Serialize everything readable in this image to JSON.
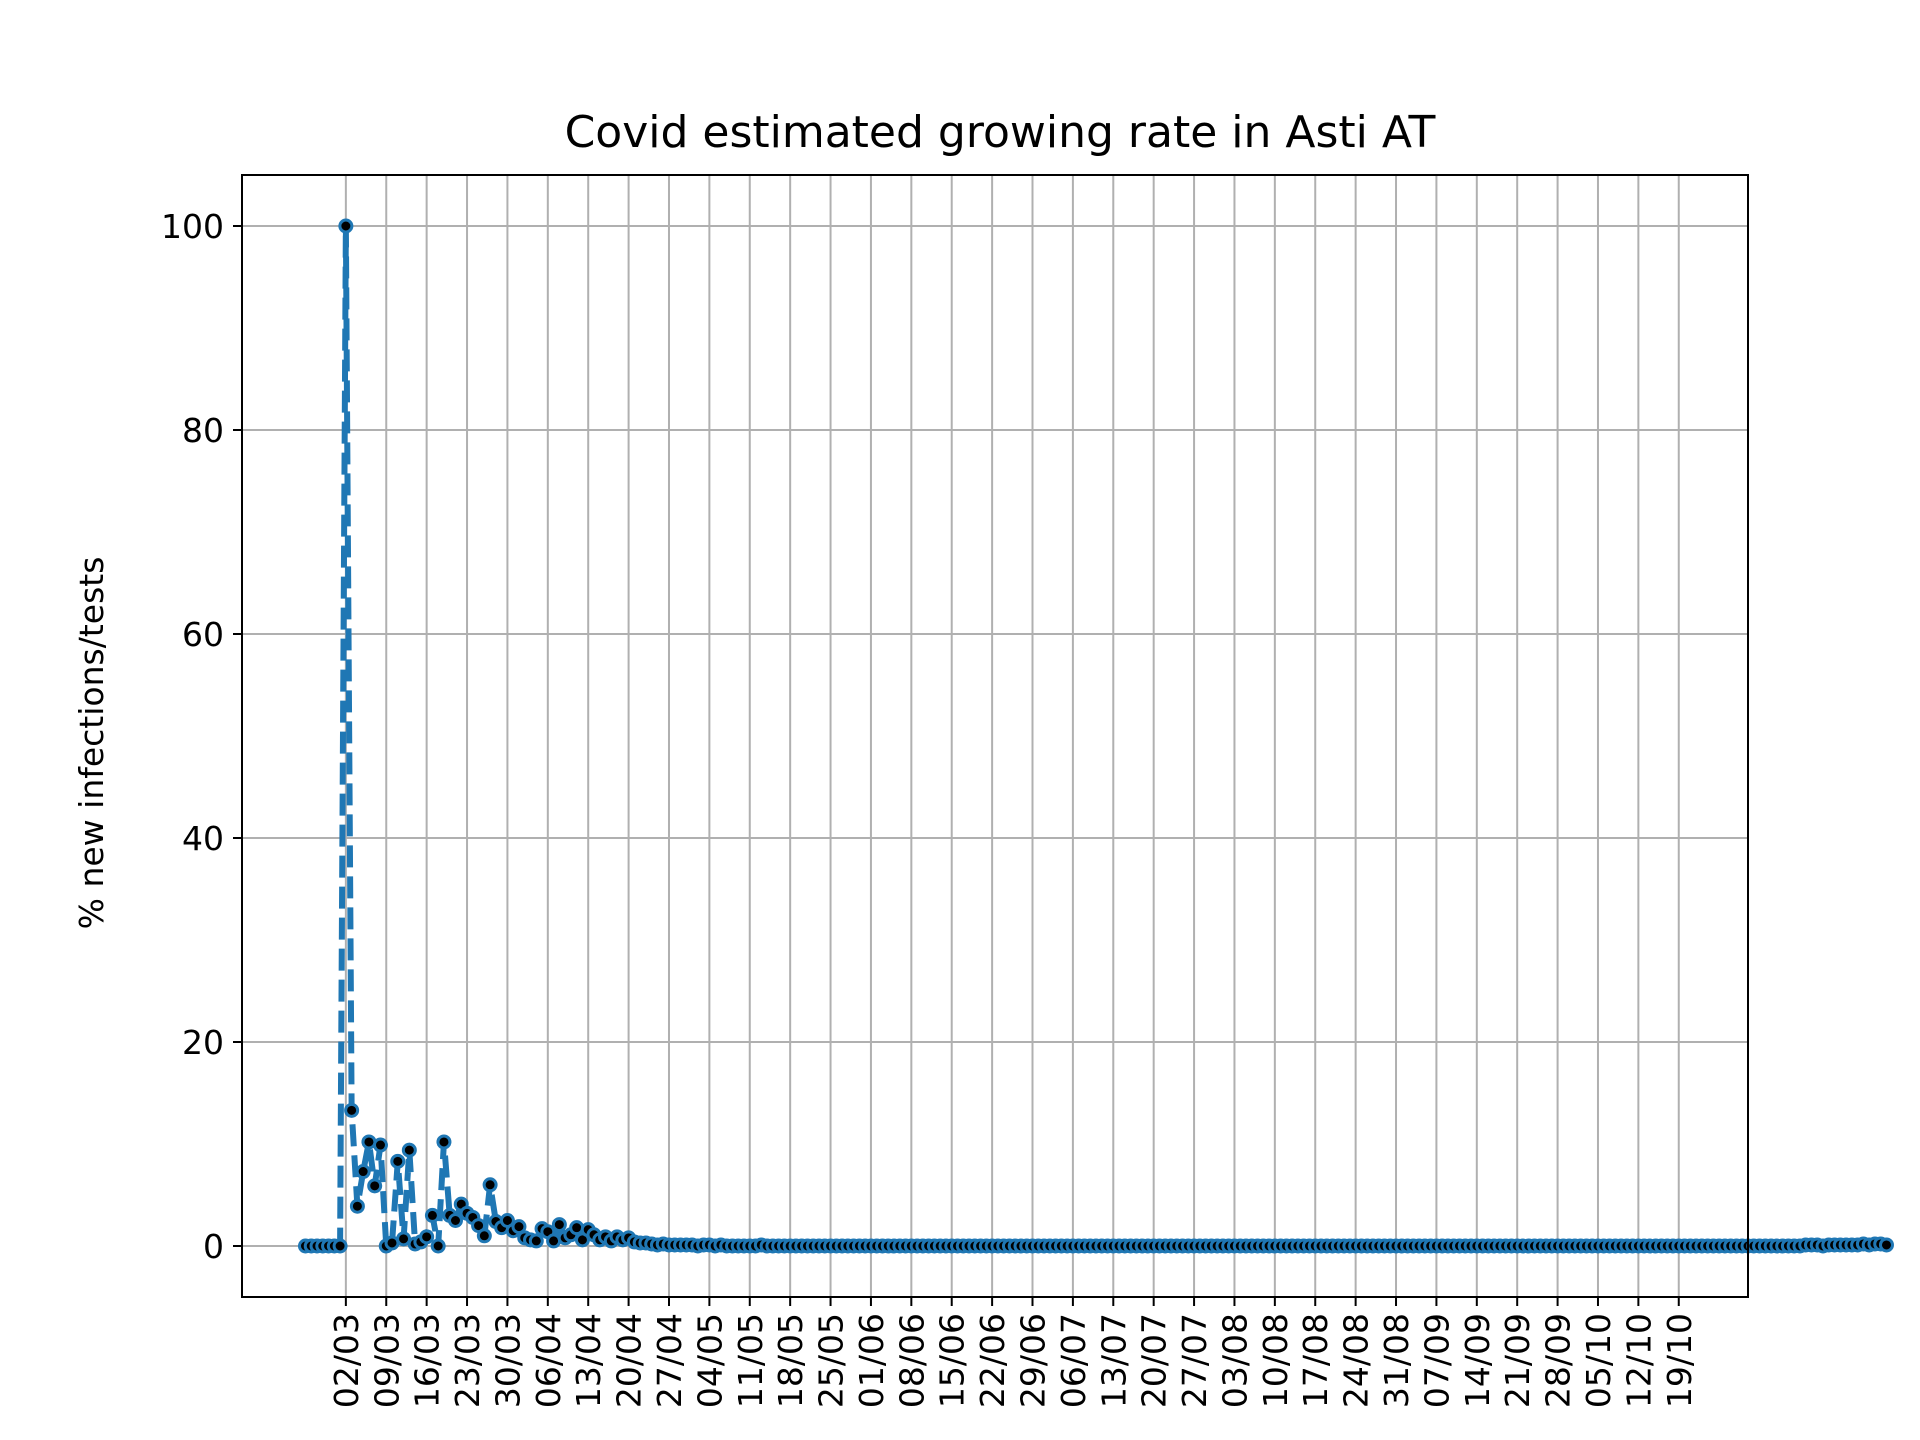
{
  "chart_data": {
    "type": "line",
    "title": "Covid estimated growing rate in Asti AT",
    "xlabel": "",
    "ylabel": "% new infections/tests",
    "ylim": [
      -5,
      105
    ],
    "yticks": [
      0,
      20,
      40,
      60,
      80,
      100
    ],
    "xlim": [
      "2020-02-13",
      "2020-10-31"
    ],
    "xtick_labels": [
      "02/03",
      "09/03",
      "16/03",
      "23/03",
      "30/03",
      "06/04",
      "13/04",
      "20/04",
      "27/04",
      "04/05",
      "11/05",
      "18/05",
      "25/05",
      "01/06",
      "08/06",
      "15/06",
      "22/06",
      "29/06",
      "06/07",
      "13/07",
      "20/07",
      "27/07",
      "03/08",
      "10/08",
      "17/08",
      "24/08",
      "31/08",
      "07/09",
      "14/09",
      "21/09",
      "28/09",
      "05/10",
      "12/10",
      "19/10"
    ],
    "xtick_dates": [
      "2020-03-02",
      "2020-03-09",
      "2020-03-16",
      "2020-03-23",
      "2020-03-30",
      "2020-04-06",
      "2020-04-13",
      "2020-04-20",
      "2020-04-27",
      "2020-05-04",
      "2020-05-11",
      "2020-05-18",
      "2020-05-25",
      "2020-06-01",
      "2020-06-08",
      "2020-06-15",
      "2020-06-22",
      "2020-06-29",
      "2020-07-06",
      "2020-07-13",
      "2020-07-20",
      "2020-07-27",
      "2020-08-03",
      "2020-08-10",
      "2020-08-17",
      "2020-08-24",
      "2020-08-31",
      "2020-09-07",
      "2020-09-14",
      "2020-09-21",
      "2020-09-28",
      "2020-10-05",
      "2020-10-12",
      "2020-10-19"
    ],
    "grid": true,
    "series": [
      {
        "color": "#1f77b4",
        "marker_color": "#000000",
        "line_style": "dashed",
        "start_date": "2020-02-24",
        "values": [
          0,
          0,
          0,
          0,
          0,
          0,
          0,
          100,
          13.3,
          3.9,
          7.3,
          10.2,
          5.9,
          9.9,
          0,
          0.3,
          8.3,
          0.7,
          9.4,
          0.2,
          0.4,
          0.9,
          3.0,
          0,
          10.2,
          3.0,
          2.5,
          4.1,
          3.2,
          2.8,
          2.0,
          1.0,
          6.0,
          2.4,
          1.8,
          2.5,
          1.5,
          1.9,
          0.8,
          0.6,
          0.5,
          1.7,
          1.4,
          0.5,
          2.1,
          0.8,
          1.1,
          1.8,
          0.6,
          1.6,
          1.1,
          0.6,
          0.9,
          0.5,
          0.9,
          0.6,
          0.8,
          0.4,
          0.3,
          0.3,
          0.2,
          0.1,
          0.2,
          0.1,
          0.1,
          0.1,
          0.1,
          0.1,
          0,
          0.1,
          0.1,
          0,
          0.1,
          0,
          0,
          0,
          0,
          0,
          0,
          0.1,
          0,
          0,
          0,
          0,
          0,
          0,
          0,
          0,
          0,
          0,
          0,
          0,
          0,
          0,
          0,
          0,
          0,
          0,
          0,
          0,
          0,
          0,
          0,
          0,
          0,
          0,
          0,
          0,
          0,
          0,
          0,
          0,
          0,
          0,
          0,
          0,
          0,
          0,
          0,
          0,
          0,
          0,
          0,
          0,
          0,
          0,
          0,
          0,
          0,
          0,
          0,
          0,
          0,
          0,
          0,
          0,
          0,
          0,
          0,
          0,
          0,
          0,
          0,
          0,
          0,
          0,
          0,
          0,
          0,
          0,
          0,
          0,
          0,
          0,
          0,
          0,
          0,
          0,
          0,
          0,
          0,
          0,
          0,
          0,
          0,
          0,
          0,
          0,
          0,
          0,
          0,
          0,
          0,
          0,
          0,
          0,
          0,
          0,
          0,
          0,
          0,
          0,
          0,
          0,
          0,
          0,
          0,
          0,
          0,
          0,
          0,
          0,
          0,
          0,
          0,
          0,
          0,
          0,
          0,
          0,
          0,
          0,
          0,
          0,
          0,
          0,
          0,
          0,
          0,
          0,
          0,
          0,
          0,
          0,
          0,
          0,
          0,
          0,
          0,
          0,
          0,
          0,
          0,
          0,
          0,
          0,
          0,
          0,
          0,
          0,
          0,
          0,
          0,
          0,
          0,
          0,
          0,
          0,
          0,
          0,
          0,
          0,
          0,
          0,
          0,
          0,
          0,
          0,
          0,
          0,
          0,
          0,
          0,
          0,
          0,
          0,
          0,
          0,
          0,
          0,
          0.1,
          0.1,
          0.1,
          0,
          0.1,
          0.1,
          0.1,
          0.1,
          0.1,
          0.1,
          0.2,
          0.1,
          0.2,
          0.2,
          0.1
        ]
      }
    ]
  }
}
